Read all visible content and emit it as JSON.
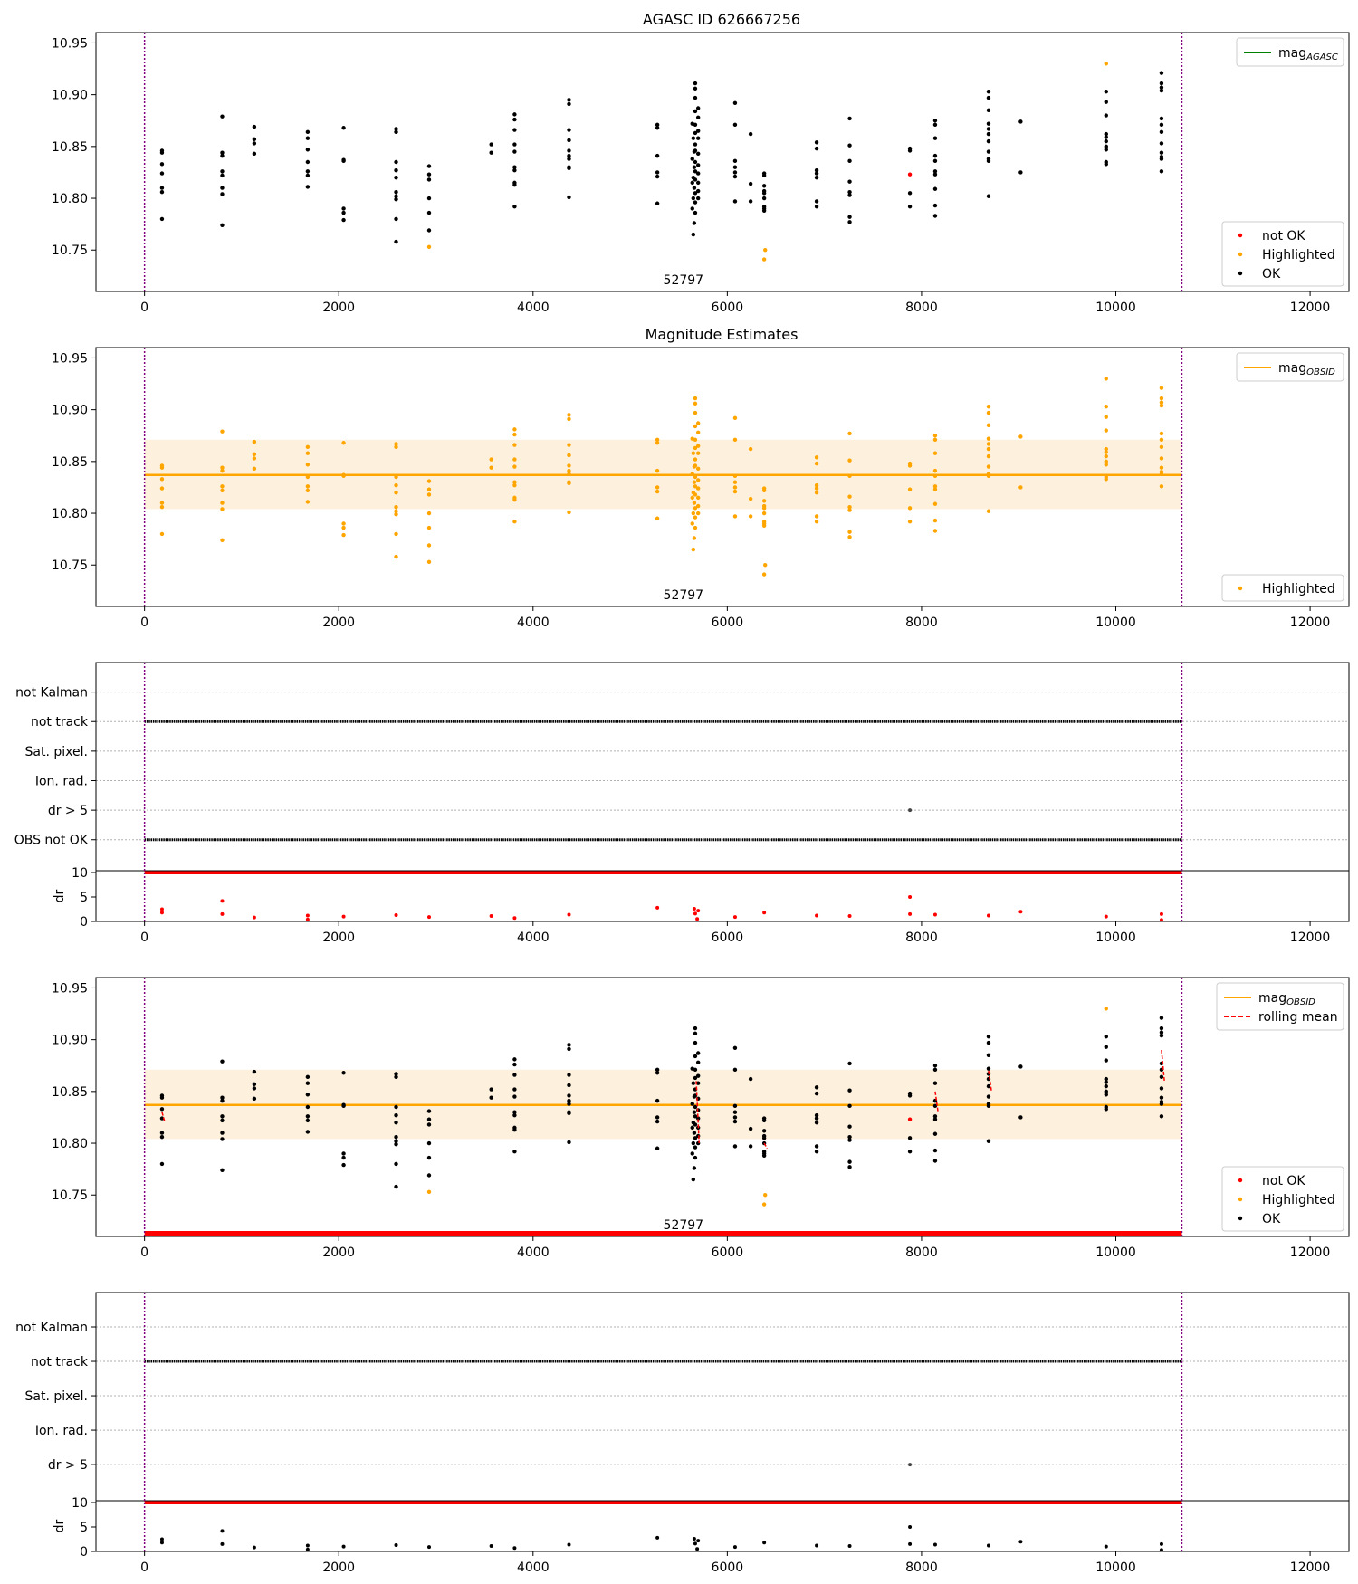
{
  "figure": {
    "title": "AGASC ID 626667256"
  },
  "colors": {
    "ok": "#000000",
    "not_ok": "#ff0000",
    "highlighted": "#ffa500",
    "mag_agasc": "#008000",
    "mag_obsid": "#ffa500",
    "band": "#fdf1de",
    "obs_boundary": "#800080",
    "rolling_mean": "#ff0000",
    "grid": "#b0b0b0"
  },
  "chart_data": [
    {
      "type": "scatter",
      "title": "AGASC ID 626667256",
      "xlim": [
        -500,
        12400
      ],
      "ylim": [
        10.71,
        10.96
      ],
      "x_ticks": [
        "0",
        "2000",
        "4000",
        "6000",
        "8000",
        "10000",
        "12000"
      ],
      "y_ticks": [
        "10.75",
        "10.80",
        "10.85",
        "10.90",
        "10.95"
      ],
      "vlines": [
        0,
        10680
      ],
      "annotation": {
        "text": "52797",
        "x": 5340,
        "y": 10.716
      },
      "legend_upper": [
        {
          "label": "mag",
          "sub": "AGASC",
          "color": "#008000",
          "kind": "line"
        }
      ],
      "legend_lower": [
        {
          "label": "not OK",
          "color": "#ff0000",
          "kind": "dot"
        },
        {
          "label": "Highlighted",
          "color": "#ffa500",
          "kind": "dot"
        },
        {
          "label": "OK",
          "color": "#000000",
          "kind": "dot"
        }
      ],
      "series": [
        {
          "name": "OK",
          "color": "#000000",
          "points": [
            [
              180,
              10.846
            ],
            [
              180,
              10.844
            ],
            [
              180,
              10.833
            ],
            [
              180,
              10.824
            ],
            [
              180,
              10.81
            ],
            [
              180,
              10.806
            ],
            [
              180,
              10.78
            ],
            [
              800,
              10.879
            ],
            [
              800,
              10.844
            ],
            [
              800,
              10.841
            ],
            [
              800,
              10.826
            ],
            [
              800,
              10.822
            ],
            [
              800,
              10.81
            ],
            [
              800,
              10.804
            ],
            [
              800,
              10.774
            ],
            [
              1130,
              10.869
            ],
            [
              1130,
              10.857
            ],
            [
              1130,
              10.853
            ],
            [
              1130,
              10.843
            ],
            [
              1680,
              10.864
            ],
            [
              1680,
              10.858
            ],
            [
              1680,
              10.847
            ],
            [
              1680,
              10.835
            ],
            [
              1680,
              10.826
            ],
            [
              1680,
              10.822
            ],
            [
              1680,
              10.811
            ],
            [
              2050,
              10.868
            ],
            [
              2050,
              10.837
            ],
            [
              2050,
              10.836
            ],
            [
              2050,
              10.79
            ],
            [
              2050,
              10.786
            ],
            [
              2050,
              10.779
            ],
            [
              2590,
              10.867
            ],
            [
              2590,
              10.864
            ],
            [
              2590,
              10.835
            ],
            [
              2590,
              10.827
            ],
            [
              2590,
              10.82
            ],
            [
              2590,
              10.806
            ],
            [
              2590,
              10.802
            ],
            [
              2590,
              10.799
            ],
            [
              2590,
              10.78
            ],
            [
              2590,
              10.758
            ],
            [
              2930,
              10.831
            ],
            [
              2930,
              10.823
            ],
            [
              2930,
              10.818
            ],
            [
              2930,
              10.8
            ],
            [
              2930,
              10.786
            ],
            [
              2930,
              10.769
            ],
            [
              3570,
              10.852
            ],
            [
              3570,
              10.844
            ],
            [
              3810,
              10.881
            ],
            [
              3810,
              10.876
            ],
            [
              3810,
              10.866
            ],
            [
              3810,
              10.852
            ],
            [
              3810,
              10.845
            ],
            [
              3810,
              10.83
            ],
            [
              3810,
              10.827
            ],
            [
              3810,
              10.815
            ],
            [
              3810,
              10.813
            ],
            [
              3810,
              10.792
            ],
            [
              4370,
              10.895
            ],
            [
              4370,
              10.891
            ],
            [
              4370,
              10.866
            ],
            [
              4370,
              10.856
            ],
            [
              4370,
              10.846
            ],
            [
              4370,
              10.841
            ],
            [
              4370,
              10.838
            ],
            [
              4370,
              10.83
            ],
            [
              4370,
              10.829
            ],
            [
              4370,
              10.801
            ],
            [
              5280,
              10.871
            ],
            [
              5280,
              10.868
            ],
            [
              5280,
              10.841
            ],
            [
              5280,
              10.825
            ],
            [
              5280,
              10.821
            ],
            [
              5280,
              10.795
            ],
            [
              5640,
              10.872
            ],
            [
              5650,
              10.858
            ],
            [
              5660,
              10.845
            ],
            [
              5640,
              10.838
            ],
            [
              5660,
              10.83
            ],
            [
              5650,
              10.82
            ],
            [
              5640,
              10.815
            ],
            [
              5660,
              10.81
            ],
            [
              5650,
              10.8
            ],
            [
              5640,
              10.79
            ],
            [
              5660,
              10.776
            ],
            [
              5650,
              10.765
            ],
            [
              5670,
              10.911
            ],
            [
              5670,
              10.906
            ],
            [
              5670,
              10.897
            ],
            [
              5670,
              10.884
            ],
            [
              5670,
              10.871
            ],
            [
              5670,
              10.863
            ],
            [
              5670,
              10.852
            ],
            [
              5670,
              10.846
            ],
            [
              5670,
              10.835
            ],
            [
              5670,
              10.826
            ],
            [
              5670,
              10.818
            ],
            [
              5670,
              10.805
            ],
            [
              5670,
              10.796
            ],
            [
              5670,
              10.786
            ],
            [
              5700,
              10.887
            ],
            [
              5700,
              10.878
            ],
            [
              5700,
              10.865
            ],
            [
              5700,
              10.858
            ],
            [
              5700,
              10.843
            ],
            [
              5700,
              10.832
            ],
            [
              5700,
              10.824
            ],
            [
              5700,
              10.815
            ],
            [
              5700,
              10.807
            ],
            [
              5700,
              10.8
            ],
            [
              6080,
              10.892
            ],
            [
              6080,
              10.871
            ],
            [
              6080,
              10.836
            ],
            [
              6080,
              10.83
            ],
            [
              6080,
              10.825
            ],
            [
              6080,
              10.821
            ],
            [
              6080,
              10.797
            ],
            [
              6240,
              10.862
            ],
            [
              6240,
              10.814
            ],
            [
              6240,
              10.797
            ],
            [
              6380,
              10.824
            ],
            [
              6380,
              10.822
            ],
            [
              6380,
              10.812
            ],
            [
              6380,
              10.807
            ],
            [
              6380,
              10.805
            ],
            [
              6380,
              10.8
            ],
            [
              6380,
              10.792
            ],
            [
              6380,
              10.79
            ],
            [
              6380,
              10.788
            ],
            [
              6920,
              10.854
            ],
            [
              6920,
              10.848
            ],
            [
              6920,
              10.827
            ],
            [
              6920,
              10.824
            ],
            [
              6920,
              10.82
            ],
            [
              6920,
              10.797
            ],
            [
              6920,
              10.792
            ],
            [
              7260,
              10.877
            ],
            [
              7260,
              10.851
            ],
            [
              7260,
              10.836
            ],
            [
              7260,
              10.816
            ],
            [
              7260,
              10.806
            ],
            [
              7260,
              10.803
            ],
            [
              7260,
              10.782
            ],
            [
              7260,
              10.777
            ],
            [
              7880,
              10.848
            ],
            [
              7880,
              10.846
            ],
            [
              7880,
              10.805
            ],
            [
              7880,
              10.792
            ],
            [
              8140,
              10.875
            ],
            [
              8140,
              10.871
            ],
            [
              8140,
              10.858
            ],
            [
              8140,
              10.841
            ],
            [
              8140,
              10.836
            ],
            [
              8140,
              10.826
            ],
            [
              8140,
              10.823
            ],
            [
              8140,
              10.809
            ],
            [
              8140,
              10.793
            ],
            [
              8140,
              10.783
            ],
            [
              8690,
              10.903
            ],
            [
              8690,
              10.897
            ],
            [
              8690,
              10.885
            ],
            [
              8690,
              10.872
            ],
            [
              8690,
              10.867
            ],
            [
              8690,
              10.862
            ],
            [
              8690,
              10.855
            ],
            [
              8690,
              10.845
            ],
            [
              8690,
              10.838
            ],
            [
              8690,
              10.836
            ],
            [
              8690,
              10.802
            ],
            [
              9020,
              10.874
            ],
            [
              9020,
              10.825
            ],
            [
              9900,
              10.903
            ],
            [
              9900,
              10.893
            ],
            [
              9900,
              10.88
            ],
            [
              9900,
              10.862
            ],
            [
              9900,
              10.859
            ],
            [
              9900,
              10.855
            ],
            [
              9900,
              10.85
            ],
            [
              9900,
              10.847
            ],
            [
              9900,
              10.835
            ],
            [
              9900,
              10.833
            ],
            [
              10470,
              10.921
            ],
            [
              10470,
              10.911
            ],
            [
              10470,
              10.907
            ],
            [
              10470,
              10.904
            ],
            [
              10470,
              10.877
            ],
            [
              10470,
              10.871
            ],
            [
              10470,
              10.864
            ],
            [
              10470,
              10.853
            ],
            [
              10470,
              10.844
            ],
            [
              10470,
              10.84
            ],
            [
              10470,
              10.838
            ],
            [
              10470,
              10.826
            ]
          ]
        },
        {
          "name": "Highlighted",
          "color": "#ffa500",
          "points": [
            [
              2930,
              10.753
            ],
            [
              6390,
              10.75
            ],
            [
              6380,
              10.741
            ],
            [
              9900,
              10.93
            ]
          ]
        },
        {
          "name": "not OK",
          "color": "#ff0000",
          "points": [
            [
              7880,
              10.823
            ]
          ]
        }
      ]
    },
    {
      "type": "scatter",
      "title": "Magnitude Estimates",
      "xlim": [
        -500,
        12400
      ],
      "ylim": [
        10.71,
        10.96
      ],
      "x_ticks": [
        "0",
        "2000",
        "4000",
        "6000",
        "8000",
        "10000",
        "12000"
      ],
      "y_ticks": [
        "10.75",
        "10.80",
        "10.85",
        "10.90",
        "10.95"
      ],
      "vlines": [
        0,
        10680
      ],
      "annotation": {
        "text": "52797",
        "x": 5340,
        "y": 10.716
      },
      "mag_obsid": {
        "value": 10.837,
        "band": [
          10.804,
          10.871
        ],
        "x": [
          0,
          10680
        ]
      },
      "legend_upper": [
        {
          "label": "mag",
          "sub": "OBSID",
          "color": "#ffa500",
          "kind": "line"
        }
      ],
      "legend_lower": [
        {
          "label": "Highlighted",
          "color": "#ffa500",
          "kind": "dot"
        }
      ],
      "series": [
        {
          "name": "Highlighted",
          "color": "#ffa500",
          "points": "same-as-panel-1-all"
        }
      ]
    },
    {
      "type": "scatter",
      "title": "",
      "xlim": [
        -500,
        12400
      ],
      "x_ticks": [
        "0",
        "2000",
        "4000",
        "6000",
        "8000",
        "10000",
        "12000"
      ],
      "category_labels": [
        "not Kalman",
        "not track",
        "Sat. pixel.",
        "Ion. rad.",
        "dr > 5",
        "OBS not OK"
      ],
      "flag_rows": {
        "not track": [
          0,
          10680
        ],
        "OBS not OK": [
          0,
          10680
        ]
      },
      "dr_point": [
        7880,
        5
      ],
      "dr_axis": {
        "label": "dr",
        "ylim": [
          0,
          10
        ],
        "ticks": [
          "0",
          "5",
          "10"
        ]
      },
      "vlines": [
        0,
        10680
      ]
    },
    {
      "type": "scatter",
      "title": "",
      "xlim": [
        -500,
        12400
      ],
      "ylim": [
        10.71,
        10.96
      ],
      "x_ticks": [
        "0",
        "2000",
        "4000",
        "6000",
        "8000",
        "10000",
        "12000"
      ],
      "y_ticks": [
        "10.75",
        "10.80",
        "10.85",
        "10.90",
        "10.95"
      ],
      "vlines": [
        0,
        10680
      ],
      "annotation": {
        "text": "52797",
        "x": 5340,
        "y": 10.716
      },
      "mag_obsid": {
        "value": 10.837,
        "band": [
          10.804,
          10.871
        ],
        "x": [
          0,
          10680
        ]
      },
      "legend_upper": [
        {
          "label": "mag",
          "sub": "OBSID",
          "color": "#ffa500",
          "kind": "line"
        },
        {
          "label": "rolling mean",
          "color": "#ff0000",
          "kind": "dashed"
        }
      ],
      "legend_lower": [
        {
          "label": "not OK",
          "color": "#ff0000",
          "kind": "dot"
        },
        {
          "label": "Highlighted",
          "color": "#ffa500",
          "kind": "dot"
        },
        {
          "label": "OK",
          "color": "#000000",
          "kind": "dot"
        }
      ]
    },
    {
      "type": "scatter",
      "title": "",
      "xlim": [
        -500,
        12400
      ],
      "x_ticks": [
        "0",
        "2000",
        "4000",
        "6000",
        "8000",
        "10000",
        "12000"
      ],
      "category_labels": [
        "not Kalman",
        "not track",
        "Sat. pixel.",
        "Ion. rad.",
        "dr > 5"
      ],
      "flag_rows": {
        "not track": [
          0,
          10680
        ]
      },
      "dr_point": [
        7880,
        5
      ],
      "dr_axis": {
        "label": "dr",
        "ylim": [
          0,
          10
        ],
        "ticks": [
          "0",
          "5",
          "10"
        ]
      },
      "vlines": [
        0,
        10680
      ]
    }
  ]
}
